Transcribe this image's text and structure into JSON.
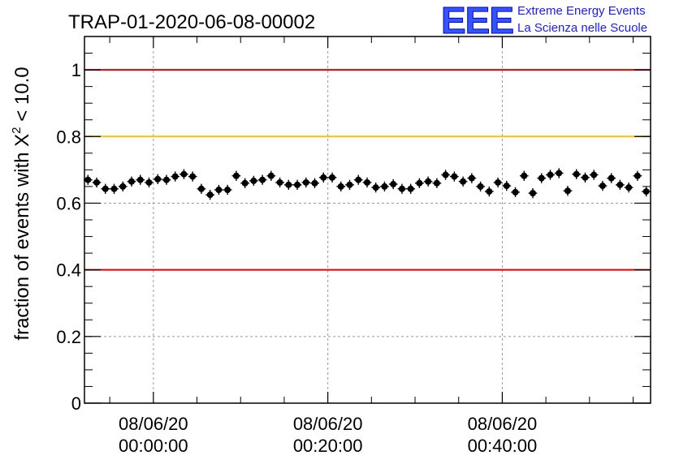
{
  "title": "TRAP-01-2020-06-08-00002",
  "logo": {
    "mark": "EEE",
    "line1": "Extreme Energy Events",
    "line2": "La Scienza nelle Scuole"
  },
  "colors": {
    "data": "#000000",
    "upper_line": "#e00000",
    "lower_line": "#e00000",
    "mid_line": "#ffc000",
    "grid": "#999999",
    "logo": "#1a1aff"
  },
  "chart_data": {
    "type": "scatter",
    "title": "TRAP-01-2020-06-08-00002",
    "ylabel_parts": {
      "prefix": "fraction of events with ",
      "symbol": "X",
      "sup": "2",
      "suffix": " < 10.0"
    },
    "xlabel": "",
    "ylim": [
      0,
      1.1
    ],
    "xlim_minutes": [
      -7.9,
      57.0
    ],
    "grid": true,
    "yticks": [
      {
        "value": 0,
        "label": "0"
      },
      {
        "value": 0.2,
        "label": "0.2"
      },
      {
        "value": 0.4,
        "label": "0.4"
      },
      {
        "value": 0.6,
        "label": "0.6"
      },
      {
        "value": 0.8,
        "label": "0.8"
      },
      {
        "value": 1,
        "label": "1"
      }
    ],
    "xticks": [
      {
        "minutes": 0,
        "date": "08/06/20",
        "time": "00:00:00"
      },
      {
        "minutes": 20,
        "date": "08/06/20",
        "time": "00:20:00"
      },
      {
        "minutes": 40,
        "date": "08/06/20",
        "time": "00:40:00"
      }
    ],
    "reference_lines": [
      {
        "y": 1.0,
        "color": "#e00000"
      },
      {
        "y": 0.8,
        "color": "#ffc000"
      },
      {
        "y": 0.4,
        "color": "#e00000"
      }
    ],
    "series": [
      {
        "x_minutes": [
          -7.5,
          -6.5,
          -5.5,
          -4.5,
          -3.5,
          -2.5,
          -1.5,
          -0.5,
          0.5,
          1.5,
          2.5,
          3.5,
          4.5,
          5.5,
          6.5,
          7.5,
          8.5,
          9.5,
          10.5,
          11.5,
          12.5,
          13.5,
          14.5,
          15.5,
          16.5,
          17.5,
          18.5,
          19.5,
          20.5,
          21.5,
          22.5,
          23.5,
          24.5,
          25.5,
          26.5,
          27.5,
          28.5,
          29.5,
          30.5,
          31.5,
          32.5,
          33.5,
          34.5,
          35.5,
          36.5,
          37.5,
          38.5,
          39.5,
          40.5,
          41.5,
          42.5,
          43.5,
          44.5,
          45.5,
          46.5,
          47.5,
          48.5,
          49.5,
          50.5,
          51.5,
          52.5,
          53.5,
          54.5,
          55.5,
          56.5
        ],
        "y": [
          0.67,
          0.662,
          0.643,
          0.643,
          0.65,
          0.665,
          0.67,
          0.662,
          0.672,
          0.67,
          0.68,
          0.687,
          0.68,
          0.643,
          0.625,
          0.64,
          0.64,
          0.682,
          0.66,
          0.667,
          0.67,
          0.682,
          0.662,
          0.655,
          0.655,
          0.662,
          0.66,
          0.677,
          0.677,
          0.65,
          0.655,
          0.67,
          0.662,
          0.647,
          0.65,
          0.657,
          0.643,
          0.643,
          0.66,
          0.665,
          0.66,
          0.685,
          0.68,
          0.665,
          0.675,
          0.65,
          0.635,
          0.662,
          0.652,
          0.633,
          0.682,
          0.63,
          0.675,
          0.685,
          0.69,
          0.637,
          0.687,
          0.677,
          0.685,
          0.652,
          0.675,
          0.655,
          0.647,
          0.682,
          0.635
        ],
        "x_err_minutes": 0.5,
        "y_err": 0.015
      }
    ]
  }
}
